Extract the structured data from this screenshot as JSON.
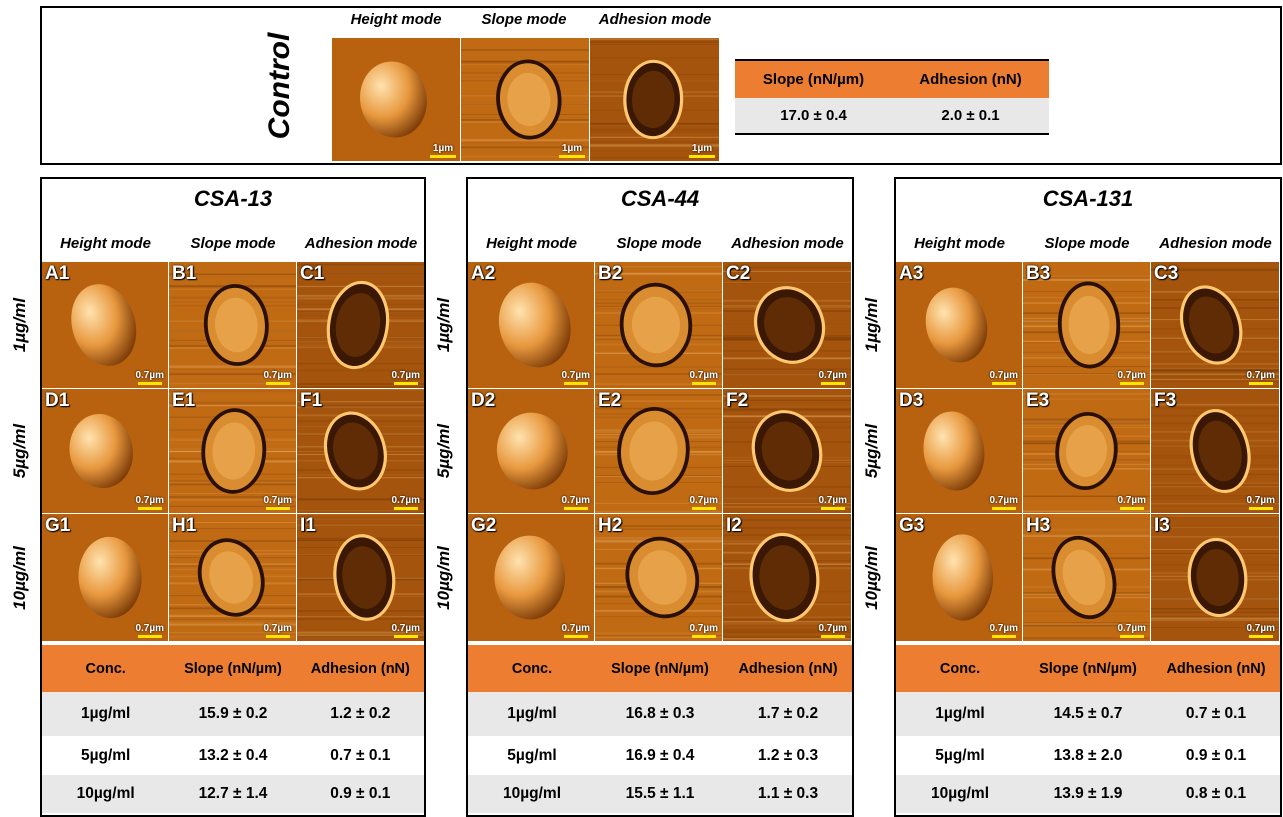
{
  "control": {
    "label": "Control",
    "modes": [
      "Height mode",
      "Slope mode",
      "Adhesion mode"
    ],
    "scalebar": "1µm",
    "table": {
      "headers": [
        "Slope (nN/µm)",
        "Adhesion (nN)"
      ],
      "row": [
        "17.0 ± 0.4",
        "2.0 ± 0.1"
      ]
    }
  },
  "concentration_labels": [
    "1µg/ml",
    "5µg/ml",
    "10µg/ml"
  ],
  "panels": [
    {
      "title": "CSA-13",
      "modes": [
        "Height mode",
        "Slope mode",
        "Adhesion mode"
      ],
      "letters": [
        "A1",
        "B1",
        "C1",
        "D1",
        "E1",
        "F1",
        "G1",
        "H1",
        "I1"
      ],
      "scalebar": "0.7µm",
      "table": {
        "headers": [
          "Conc.",
          "Slope (nN/µm)",
          "Adhesion (nN)"
        ],
        "rows": [
          [
            "1µg/ml",
            "15.9 ± 0.2",
            "1.2 ± 0.2"
          ],
          [
            "5µg/ml",
            "13.2 ± 0.4",
            "0.7 ± 0.1"
          ],
          [
            "10µg/ml",
            "12.7 ± 1.4",
            "0.9 ± 0.1"
          ]
        ]
      }
    },
    {
      "title": "CSA-44",
      "modes": [
        "Height mode",
        "Slope mode",
        "Adhesion mode"
      ],
      "letters": [
        "A2",
        "B2",
        "C2",
        "D2",
        "E2",
        "F2",
        "G2",
        "H2",
        "I2"
      ],
      "scalebar": "0.7µm",
      "table": {
        "headers": [
          "Conc.",
          "Slope (nN/µm)",
          "Adhesion (nN)"
        ],
        "rows": [
          [
            "1µg/ml",
            "16.8 ± 0.3",
            "1.7 ± 0.2"
          ],
          [
            "5µg/ml",
            "16.9 ± 0.4",
            "1.2 ± 0.3"
          ],
          [
            "10µg/ml",
            "15.5 ± 1.1",
            "1.1 ± 0.3"
          ]
        ]
      }
    },
    {
      "title": "CSA-131",
      "modes": [
        "Height mode",
        "Slope mode",
        "Adhesion mode"
      ],
      "letters": [
        "A3",
        "B3",
        "C3",
        "D3",
        "E3",
        "F3",
        "G3",
        "H3",
        "I3"
      ],
      "scalebar": "0.7µm",
      "table": {
        "headers": [
          "Conc.",
          "Slope (nN/µm)",
          "Adhesion (nN)"
        ],
        "rows": [
          [
            "1µg/ml",
            "14.5 ± 0.7",
            "0.7 ± 0.1"
          ],
          [
            "5µg/ml",
            "13.8 ± 2.0",
            "0.9 ± 0.1"
          ],
          [
            "10µg/ml",
            "13.9 ± 1.9",
            "0.8 ± 0.1"
          ]
        ]
      }
    }
  ],
  "colors": {
    "accent_orange": "#ed7d31",
    "row_shade": "#e8e8e8",
    "afm_base": "#b25d10",
    "scalebar": "#ffe600"
  }
}
